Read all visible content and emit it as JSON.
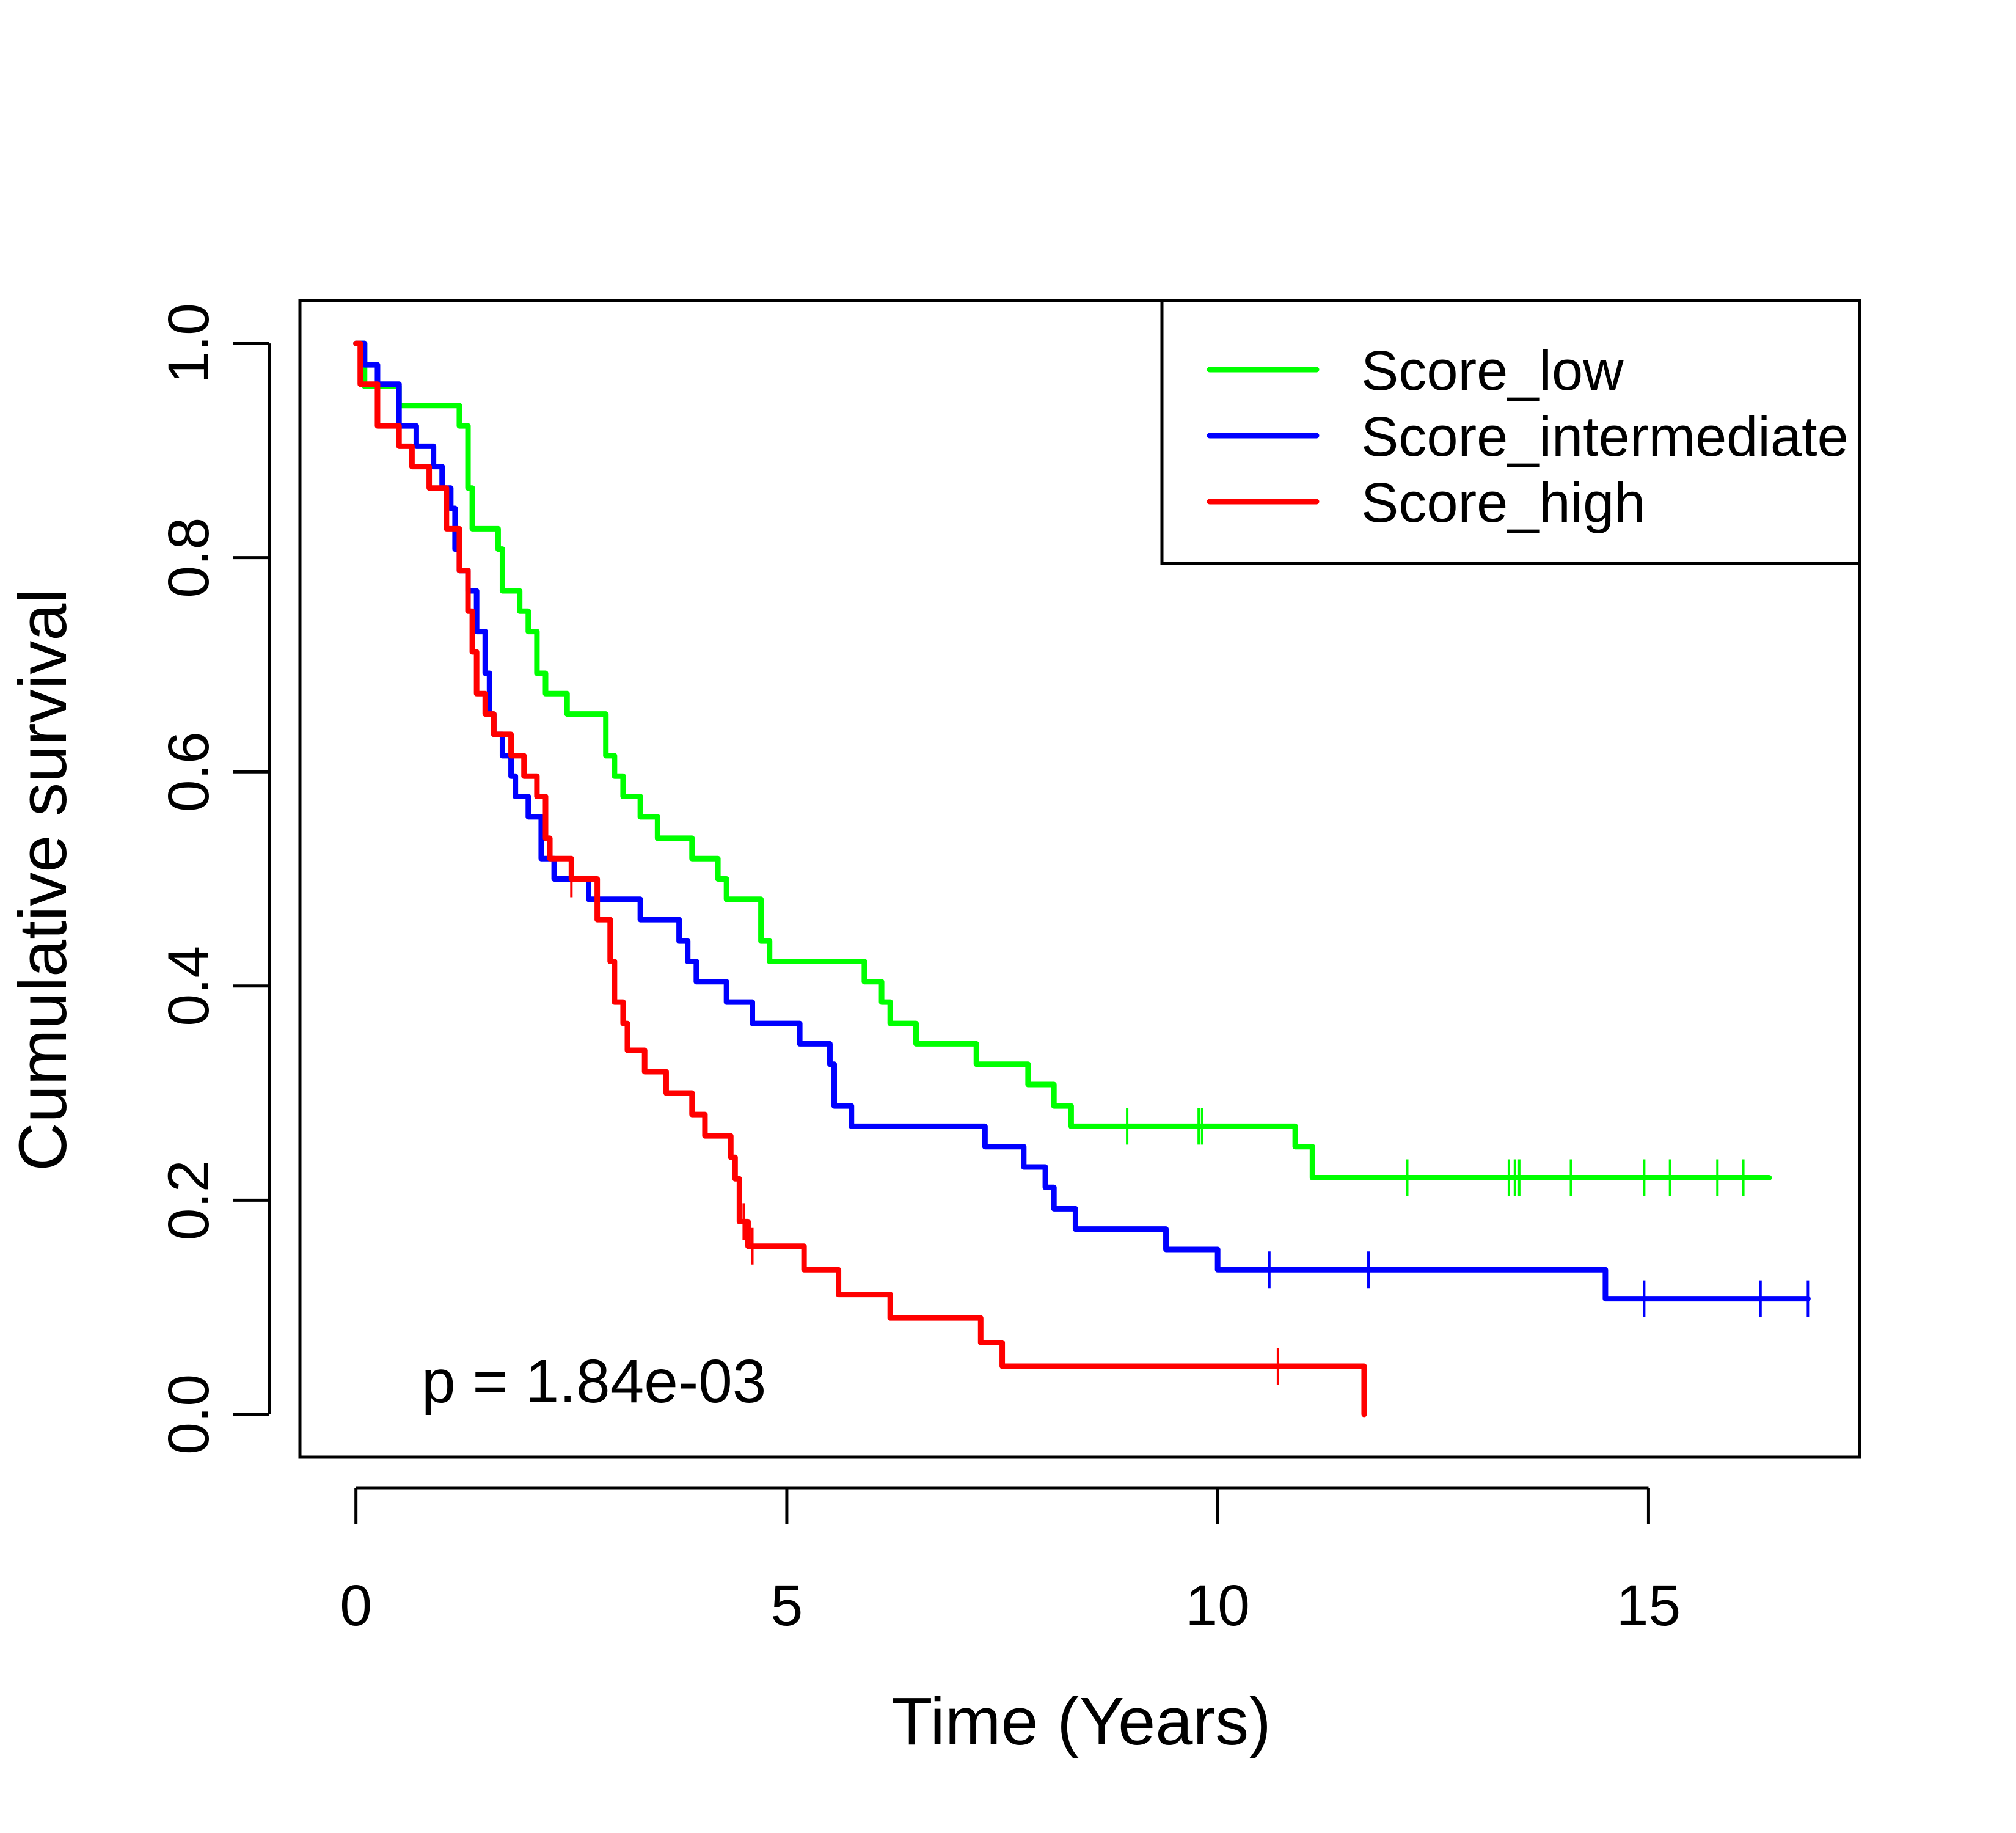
{
  "chart_data": {
    "type": "line",
    "subtype": "kaplan-meier step",
    "title": "",
    "xlabel": "Time (Years)",
    "ylabel": "Cumulative survival",
    "xlim": [
      -0.65,
      17.45
    ],
    "ylim": [
      -0.04,
      1.04
    ],
    "xticks": [
      0,
      5,
      10,
      15
    ],
    "xtick_labels": [
      "0",
      "5",
      "10",
      "15"
    ],
    "yticks": [
      0.0,
      0.2,
      0.4,
      0.6,
      0.8,
      1.0
    ],
    "ytick_labels": [
      "0.0",
      "0.2",
      "0.4",
      "0.6",
      "0.8",
      "1.0"
    ],
    "grid": false,
    "legend_position": "top-right",
    "annotation": "p = 1.84e-03",
    "series": [
      {
        "name": "Score_low",
        "color": "#00ff00",
        "steps": [
          [
            0.0,
            1.0
          ],
          [
            0.1,
            0.96
          ],
          [
            0.5,
            0.942
          ],
          [
            1.2,
            0.923
          ],
          [
            1.3,
            0.865
          ],
          [
            1.35,
            0.827
          ],
          [
            1.65,
            0.808
          ],
          [
            1.7,
            0.769
          ],
          [
            1.9,
            0.75
          ],
          [
            2.0,
            0.731
          ],
          [
            2.1,
            0.692
          ],
          [
            2.2,
            0.673
          ],
          [
            2.45,
            0.654
          ],
          [
            2.9,
            0.615
          ],
          [
            3.0,
            0.596
          ],
          [
            3.1,
            0.577
          ],
          [
            3.3,
            0.558
          ],
          [
            3.5,
            0.538
          ],
          [
            3.9,
            0.519
          ],
          [
            4.2,
            0.5
          ],
          [
            4.3,
            0.481
          ],
          [
            4.7,
            0.442
          ],
          [
            4.8,
            0.423
          ],
          [
            5.9,
            0.404
          ],
          [
            6.1,
            0.385
          ],
          [
            6.2,
            0.365
          ],
          [
            6.5,
            0.346
          ],
          [
            7.2,
            0.327
          ],
          [
            7.8,
            0.308
          ],
          [
            8.1,
            0.288
          ],
          [
            8.3,
            0.269
          ],
          [
            10.9,
            0.25
          ],
          [
            11.1,
            0.221
          ]
        ],
        "end_time": 16.4,
        "censored_times": [
          8.95,
          9.78,
          9.82,
          12.2,
          13.38,
          13.45,
          13.5,
          14.1,
          14.95,
          15.25,
          15.8,
          16.1
        ]
      },
      {
        "name": "Score_intermediate",
        "color": "#0000ff",
        "steps": [
          [
            0.0,
            1.0
          ],
          [
            0.1,
            0.98
          ],
          [
            0.25,
            0.962
          ],
          [
            0.5,
            0.923
          ],
          [
            0.7,
            0.904
          ],
          [
            0.9,
            0.885
          ],
          [
            1.0,
            0.865
          ],
          [
            1.1,
            0.846
          ],
          [
            1.15,
            0.808
          ],
          [
            1.2,
            0.788
          ],
          [
            1.3,
            0.769
          ],
          [
            1.4,
            0.731
          ],
          [
            1.5,
            0.692
          ],
          [
            1.55,
            0.654
          ],
          [
            1.6,
            0.635
          ],
          [
            1.7,
            0.615
          ],
          [
            1.8,
            0.596
          ],
          [
            1.85,
            0.577
          ],
          [
            2.0,
            0.558
          ],
          [
            2.15,
            0.519
          ],
          [
            2.3,
            0.5
          ],
          [
            2.7,
            0.481
          ],
          [
            3.3,
            0.462
          ],
          [
            3.75,
            0.442
          ],
          [
            3.85,
            0.423
          ],
          [
            3.95,
            0.404
          ],
          [
            4.3,
            0.385
          ],
          [
            4.6,
            0.365
          ],
          [
            5.15,
            0.346
          ],
          [
            5.5,
            0.327
          ],
          [
            5.55,
            0.288
          ],
          [
            5.75,
            0.269
          ],
          [
            7.3,
            0.25
          ],
          [
            7.75,
            0.231
          ],
          [
            8.0,
            0.212
          ],
          [
            8.1,
            0.192
          ],
          [
            8.35,
            0.173
          ],
          [
            9.4,
            0.154
          ],
          [
            10.0,
            0.135
          ],
          [
            14.5,
            0.108
          ]
        ],
        "end_time": 16.85,
        "censored_times": [
          10.6,
          11.75,
          14.95,
          16.3,
          16.85
        ]
      },
      {
        "name": "Score_high",
        "color": "#ff0000",
        "steps": [
          [
            0.0,
            1.0
          ],
          [
            0.05,
            0.962
          ],
          [
            0.25,
            0.923
          ],
          [
            0.5,
            0.904
          ],
          [
            0.65,
            0.885
          ],
          [
            0.85,
            0.865
          ],
          [
            1.05,
            0.827
          ],
          [
            1.2,
            0.788
          ],
          [
            1.3,
            0.75
          ],
          [
            1.35,
            0.712
          ],
          [
            1.4,
            0.673
          ],
          [
            1.5,
            0.654
          ],
          [
            1.6,
            0.635
          ],
          [
            1.8,
            0.615
          ],
          [
            1.95,
            0.596
          ],
          [
            2.1,
            0.577
          ],
          [
            2.2,
            0.538
          ],
          [
            2.25,
            0.519
          ],
          [
            2.5,
            0.5
          ],
          [
            2.8,
            0.462
          ],
          [
            2.95,
            0.423
          ],
          [
            3.0,
            0.385
          ],
          [
            3.1,
            0.365
          ],
          [
            3.15,
            0.34
          ],
          [
            3.35,
            0.32
          ],
          [
            3.6,
            0.3
          ],
          [
            3.9,
            0.28
          ],
          [
            4.05,
            0.26
          ],
          [
            4.35,
            0.24
          ],
          [
            4.4,
            0.22
          ],
          [
            4.45,
            0.18
          ],
          [
            4.55,
            0.157
          ],
          [
            5.2,
            0.135
          ],
          [
            5.6,
            0.112
          ],
          [
            6.2,
            0.09
          ],
          [
            7.25,
            0.067
          ],
          [
            7.5,
            0.045
          ],
          [
            11.7,
            0.0
          ]
        ],
        "end_time": 11.7,
        "censored_times": [
          2.5,
          4.5,
          4.6,
          10.7
        ]
      }
    ]
  }
}
